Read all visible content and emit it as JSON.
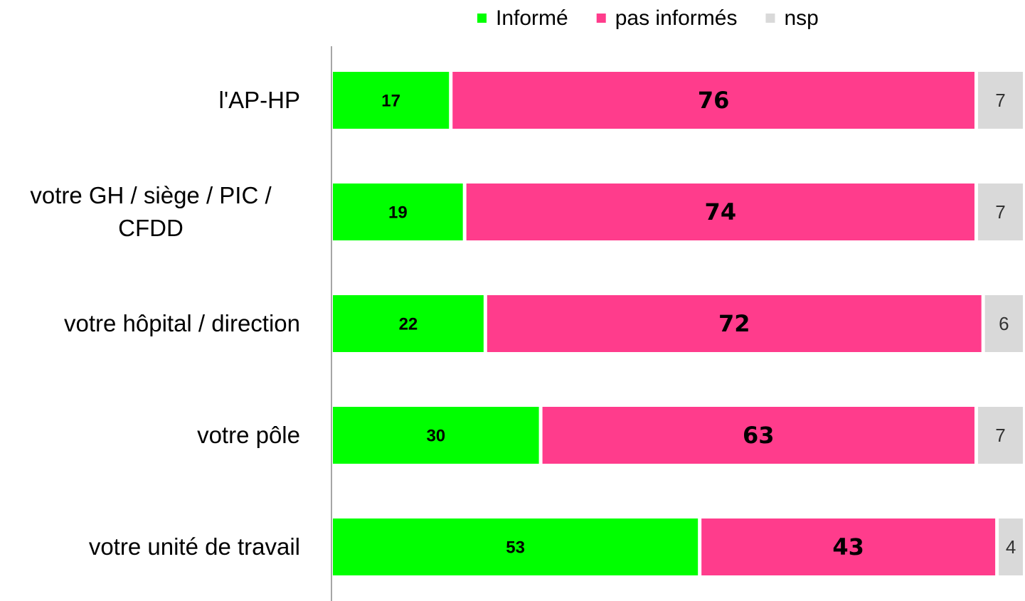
{
  "chart_data": {
    "type": "bar",
    "orientation": "horizontal",
    "stacked": true,
    "categories": [
      "l'AP-HP",
      "votre GH / siège / PIC / CFDD",
      "votre hôpital / direction",
      "votre pôle",
      "votre unité de travail"
    ],
    "series": [
      {
        "name": "Informé",
        "color": "#00ff00",
        "values": [
          17,
          19,
          22,
          30,
          53
        ]
      },
      {
        "name": "pas informés",
        "color": "#ff3c8c",
        "values": [
          76,
          74,
          72,
          63,
          43
        ]
      },
      {
        "name": "nsp",
        "color": "#d9d9d9",
        "values": [
          7,
          7,
          6,
          7,
          4
        ]
      }
    ],
    "xlim": [
      0,
      100
    ],
    "legend": "top"
  }
}
